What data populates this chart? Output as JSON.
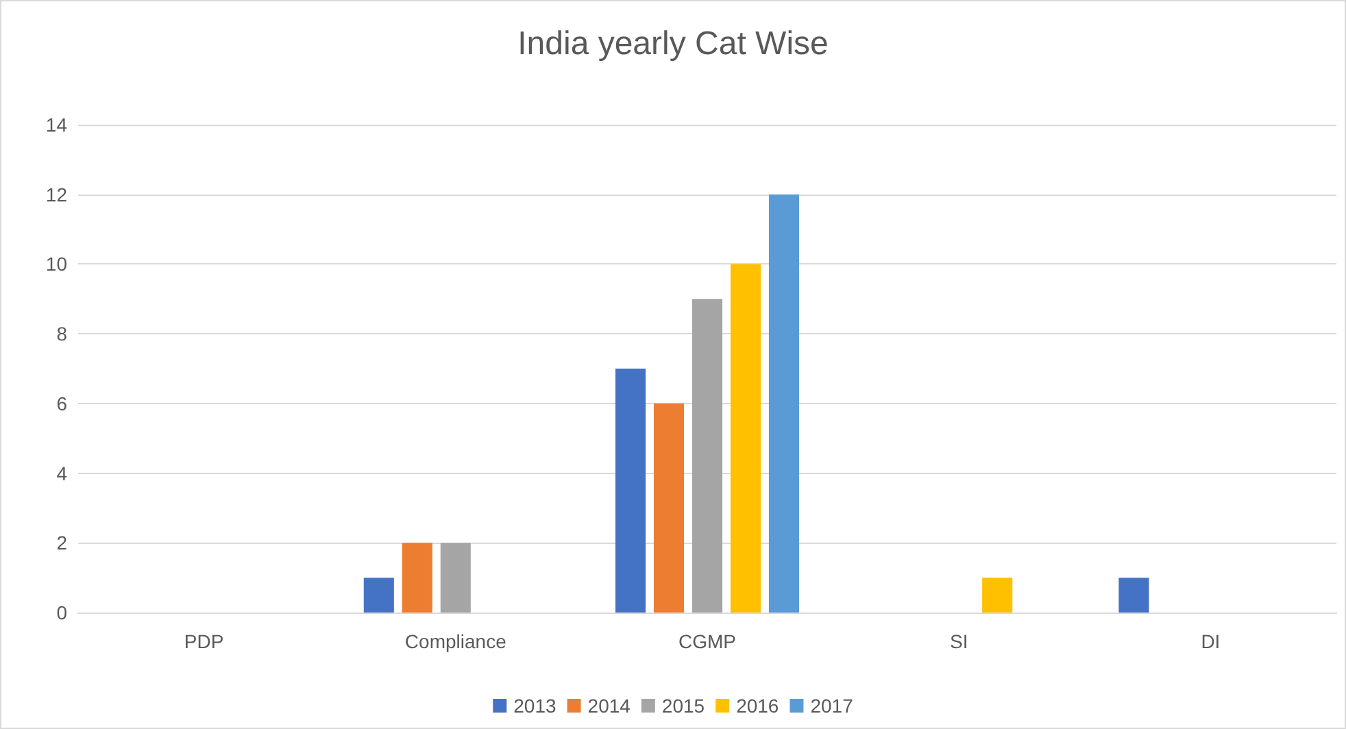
{
  "chart_data": {
    "type": "bar",
    "title": "India yearly Cat Wise",
    "categories": [
      "PDP",
      "Compliance",
      "CGMP",
      "SI",
      "DI"
    ],
    "series": [
      {
        "name": "2013",
        "color": "#4472c4",
        "values": [
          null,
          1,
          7,
          null,
          1
        ]
      },
      {
        "name": "2014",
        "color": "#ed7d31",
        "values": [
          null,
          2,
          6,
          null,
          null
        ]
      },
      {
        "name": "2015",
        "color": "#a5a5a5",
        "values": [
          null,
          2,
          9,
          null,
          null
        ]
      },
      {
        "name": "2016",
        "color": "#ffc000",
        "values": [
          null,
          null,
          10,
          1,
          null
        ]
      },
      {
        "name": "2017",
        "color": "#5b9bd5",
        "values": [
          null,
          null,
          12,
          null,
          null
        ]
      }
    ],
    "ylim": [
      0,
      14
    ],
    "yticks": [
      0,
      2,
      4,
      6,
      8,
      10,
      12,
      14
    ],
    "grid": "y",
    "legend": "bottom"
  }
}
